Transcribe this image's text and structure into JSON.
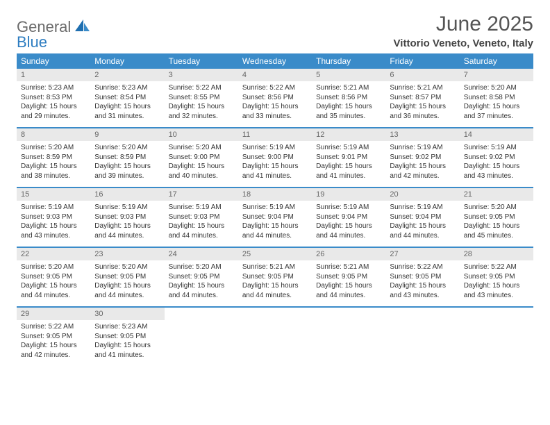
{
  "brand": {
    "part1": "General",
    "part2": "Blue"
  },
  "title": "June 2025",
  "location": "Vittorio Veneto, Veneto, Italy",
  "colors": {
    "header_bg": "#3a8bc9",
    "header_text": "#ffffff",
    "daynum_bg": "#e9e9e9",
    "daynum_text": "#666666",
    "body_text": "#333333",
    "brand_gray": "#6b6b6b",
    "brand_blue": "#2d7dc1"
  },
  "day_names": [
    "Sunday",
    "Monday",
    "Tuesday",
    "Wednesday",
    "Thursday",
    "Friday",
    "Saturday"
  ],
  "weeks": [
    [
      {
        "n": "1",
        "sunrise": "Sunrise: 5:23 AM",
        "sunset": "Sunset: 8:53 PM",
        "daylight": "Daylight: 15 hours and 29 minutes."
      },
      {
        "n": "2",
        "sunrise": "Sunrise: 5:23 AM",
        "sunset": "Sunset: 8:54 PM",
        "daylight": "Daylight: 15 hours and 31 minutes."
      },
      {
        "n": "3",
        "sunrise": "Sunrise: 5:22 AM",
        "sunset": "Sunset: 8:55 PM",
        "daylight": "Daylight: 15 hours and 32 minutes."
      },
      {
        "n": "4",
        "sunrise": "Sunrise: 5:22 AM",
        "sunset": "Sunset: 8:56 PM",
        "daylight": "Daylight: 15 hours and 33 minutes."
      },
      {
        "n": "5",
        "sunrise": "Sunrise: 5:21 AM",
        "sunset": "Sunset: 8:56 PM",
        "daylight": "Daylight: 15 hours and 35 minutes."
      },
      {
        "n": "6",
        "sunrise": "Sunrise: 5:21 AM",
        "sunset": "Sunset: 8:57 PM",
        "daylight": "Daylight: 15 hours and 36 minutes."
      },
      {
        "n": "7",
        "sunrise": "Sunrise: 5:20 AM",
        "sunset": "Sunset: 8:58 PM",
        "daylight": "Daylight: 15 hours and 37 minutes."
      }
    ],
    [
      {
        "n": "8",
        "sunrise": "Sunrise: 5:20 AM",
        "sunset": "Sunset: 8:59 PM",
        "daylight": "Daylight: 15 hours and 38 minutes."
      },
      {
        "n": "9",
        "sunrise": "Sunrise: 5:20 AM",
        "sunset": "Sunset: 8:59 PM",
        "daylight": "Daylight: 15 hours and 39 minutes."
      },
      {
        "n": "10",
        "sunrise": "Sunrise: 5:20 AM",
        "sunset": "Sunset: 9:00 PM",
        "daylight": "Daylight: 15 hours and 40 minutes."
      },
      {
        "n": "11",
        "sunrise": "Sunrise: 5:19 AM",
        "sunset": "Sunset: 9:00 PM",
        "daylight": "Daylight: 15 hours and 41 minutes."
      },
      {
        "n": "12",
        "sunrise": "Sunrise: 5:19 AM",
        "sunset": "Sunset: 9:01 PM",
        "daylight": "Daylight: 15 hours and 41 minutes."
      },
      {
        "n": "13",
        "sunrise": "Sunrise: 5:19 AM",
        "sunset": "Sunset: 9:02 PM",
        "daylight": "Daylight: 15 hours and 42 minutes."
      },
      {
        "n": "14",
        "sunrise": "Sunrise: 5:19 AM",
        "sunset": "Sunset: 9:02 PM",
        "daylight": "Daylight: 15 hours and 43 minutes."
      }
    ],
    [
      {
        "n": "15",
        "sunrise": "Sunrise: 5:19 AM",
        "sunset": "Sunset: 9:03 PM",
        "daylight": "Daylight: 15 hours and 43 minutes."
      },
      {
        "n": "16",
        "sunrise": "Sunrise: 5:19 AM",
        "sunset": "Sunset: 9:03 PM",
        "daylight": "Daylight: 15 hours and 44 minutes."
      },
      {
        "n": "17",
        "sunrise": "Sunrise: 5:19 AM",
        "sunset": "Sunset: 9:03 PM",
        "daylight": "Daylight: 15 hours and 44 minutes."
      },
      {
        "n": "18",
        "sunrise": "Sunrise: 5:19 AM",
        "sunset": "Sunset: 9:04 PM",
        "daylight": "Daylight: 15 hours and 44 minutes."
      },
      {
        "n": "19",
        "sunrise": "Sunrise: 5:19 AM",
        "sunset": "Sunset: 9:04 PM",
        "daylight": "Daylight: 15 hours and 44 minutes."
      },
      {
        "n": "20",
        "sunrise": "Sunrise: 5:19 AM",
        "sunset": "Sunset: 9:04 PM",
        "daylight": "Daylight: 15 hours and 44 minutes."
      },
      {
        "n": "21",
        "sunrise": "Sunrise: 5:20 AM",
        "sunset": "Sunset: 9:05 PM",
        "daylight": "Daylight: 15 hours and 45 minutes."
      }
    ],
    [
      {
        "n": "22",
        "sunrise": "Sunrise: 5:20 AM",
        "sunset": "Sunset: 9:05 PM",
        "daylight": "Daylight: 15 hours and 44 minutes."
      },
      {
        "n": "23",
        "sunrise": "Sunrise: 5:20 AM",
        "sunset": "Sunset: 9:05 PM",
        "daylight": "Daylight: 15 hours and 44 minutes."
      },
      {
        "n": "24",
        "sunrise": "Sunrise: 5:20 AM",
        "sunset": "Sunset: 9:05 PM",
        "daylight": "Daylight: 15 hours and 44 minutes."
      },
      {
        "n": "25",
        "sunrise": "Sunrise: 5:21 AM",
        "sunset": "Sunset: 9:05 PM",
        "daylight": "Daylight: 15 hours and 44 minutes."
      },
      {
        "n": "26",
        "sunrise": "Sunrise: 5:21 AM",
        "sunset": "Sunset: 9:05 PM",
        "daylight": "Daylight: 15 hours and 44 minutes."
      },
      {
        "n": "27",
        "sunrise": "Sunrise: 5:22 AM",
        "sunset": "Sunset: 9:05 PM",
        "daylight": "Daylight: 15 hours and 43 minutes."
      },
      {
        "n": "28",
        "sunrise": "Sunrise: 5:22 AM",
        "sunset": "Sunset: 9:05 PM",
        "daylight": "Daylight: 15 hours and 43 minutes."
      }
    ],
    [
      {
        "n": "29",
        "sunrise": "Sunrise: 5:22 AM",
        "sunset": "Sunset: 9:05 PM",
        "daylight": "Daylight: 15 hours and 42 minutes."
      },
      {
        "n": "30",
        "sunrise": "Sunrise: 5:23 AM",
        "sunset": "Sunset: 9:05 PM",
        "daylight": "Daylight: 15 hours and 41 minutes."
      },
      null,
      null,
      null,
      null,
      null
    ]
  ]
}
